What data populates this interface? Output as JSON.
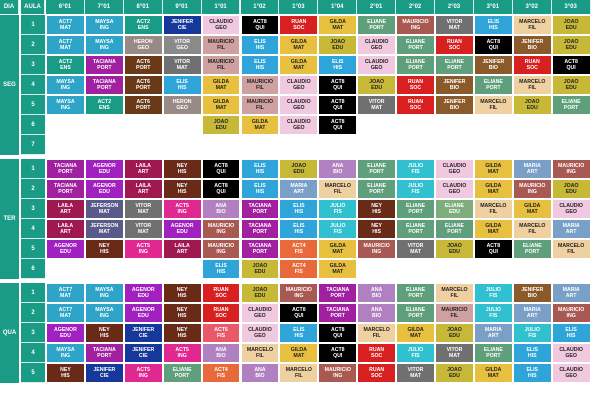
{
  "header": {
    "dia_label": "DIA",
    "aula_label": "AULA"
  },
  "classes": [
    "6°01",
    "7°01",
    "8°01",
    "9°01",
    "1°01",
    "1°02",
    "1°03",
    "1°04",
    "2°01",
    "2°02",
    "2°03",
    "3°01",
    "3°02",
    "3°03"
  ],
  "colors": {
    "ACT7 MAT": {
      "bg": "#2ea4c9",
      "fg": "#ffffff"
    },
    "MAYSA ING": {
      "bg": "#2ea4c9",
      "fg": "#ffffff"
    },
    "ACT2 ENS": {
      "bg": "#1a9b86",
      "fg": "#ffffff"
    },
    "JENIFER CIE": {
      "bg": "#16389a",
      "fg": "#ffffff"
    },
    "CLAUDIO GEO": {
      "bg": "#f0c8e0",
      "fg": "#222222"
    },
    "ACT8 QUI": {
      "bg": "#000000",
      "fg": "#ffffff"
    },
    "RUAN SOC": {
      "bg": "#d82020",
      "fg": "#ffffff"
    },
    "GILDA MAT": {
      "bg": "#e8c040",
      "fg": "#222222"
    },
    "ELIANE PORT": {
      "bg": "#5f9f7c",
      "fg": "#ffffff"
    },
    "MAURICIO ING": {
      "bg": "#a85a52",
      "fg": "#ffffff"
    },
    "VITOR MAT": {
      "bg": "#707070",
      "fg": "#ffffff"
    },
    "ELIS HIS": {
      "bg": "#2ea4d8",
      "fg": "#ffffff"
    },
    "MARCELO FIL": {
      "bg": "#efd0a0",
      "fg": "#222222"
    },
    "JOAO EDU": {
      "bg": "#c8b838",
      "fg": "#222222"
    },
    "HERON GEO": {
      "bg": "#9a8a86",
      "fg": "#ffffff"
    },
    "VITOR GEO": {
      "bg": "#8a8a8a",
      "fg": "#ffffff"
    },
    "MAURICIO FIL": {
      "bg": "#cfa0a0",
      "fg": "#222222"
    },
    "JENIFER BIO": {
      "bg": "#8a5a2a",
      "fg": "#ffffff"
    },
    "TACIANA PORT": {
      "bg": "#a020a0",
      "fg": "#ffffff"
    },
    "ACT6 PORT": {
      "bg": "#6a3a18",
      "fg": "#ffffff"
    },
    "ACT4 FIS": {
      "bg": "#e86a3a",
      "fg": "#ffffff"
    },
    "ELIANE EDU": {
      "bg": "#7fae7c",
      "fg": "#ffffff"
    },
    "AGENOR EDU": {
      "bg": "#a020c0",
      "fg": "#ffffff"
    },
    "LAILA ART": {
      "bg": "#a01850",
      "fg": "#ffffff"
    },
    "NEY HIS": {
      "bg": "#6a2a18",
      "fg": "#ffffff"
    },
    "ANA BIO": {
      "bg": "#b080c0",
      "fg": "#ffffff"
    },
    "JULIO FIS": {
      "bg": "#30c0d0",
      "fg": "#ffffff"
    },
    "MARIA ART": {
      "bg": "#7aa0c8",
      "fg": "#ffffff"
    },
    "JEFERSON MAT": {
      "bg": "#5a5a8a",
      "fg": "#ffffff"
    },
    "ACT5 ING": {
      "bg": "#e02890",
      "fg": "#ffffff"
    },
    "ACT6 FIS": {
      "bg": "#e85a6a",
      "fg": "#ffffff"
    },
    "ELIANE EDU2": {
      "bg": "#7fae7c",
      "fg": "#ffffff"
    }
  },
  "days": [
    {
      "name": "SEG",
      "rows": [
        {
          "aula": "1",
          "cells": [
            "ACT7 MAT",
            "MAYSA ING",
            "ACT2 ENS",
            "JENIFER CIE",
            "CLAUDIO GEO",
            "ACT8 QUI",
            "RUAN SOC",
            "GILDA MAT",
            "ELIANE PORT",
            "MAURICIO ING",
            "VITOR MAT",
            "ELIS HIS",
            "MARCELO FIL",
            "JOAO EDU"
          ]
        },
        {
          "aula": "2",
          "cells": [
            "ACT7 MAT",
            "MAYSA ING",
            "HERON GEO",
            "VITOR GEO",
            "MAURICIO FIL",
            "ELIS HIS",
            "GILDA MAT",
            "JOAO EDU",
            "CLAUDIO GEO",
            "ELIANE PORT",
            "RUAN SOC",
            "ACT8 QUI",
            "JENIFER BIO",
            "JOAO EDU"
          ]
        },
        {
          "aula": "3",
          "cells": [
            "ACT2 ENS",
            "TACIANA PORT",
            "ACT6 PORT",
            "VITOR MAT",
            "MAURICIO FIL",
            "ELIS HIS",
            "GILDA MAT",
            "ELIS HIS",
            "CLAUDIO GEO",
            "ELIANE PORT",
            "ELIANE PORT",
            "JENIFER BIO",
            "RUAN SOC",
            "ACT8 QUI"
          ]
        },
        {
          "aula": "4",
          "cells": [
            "MAYSA ING",
            "TACIANA PORT",
            "ACT6 PORT",
            "ELIS HIS",
            "GILDA MAT",
            "MAURICIO FIL",
            "CLAUDIO GEO",
            "ACT8 QUI",
            "JOAO EDU",
            "RUAN SOC",
            "JENIFER BIO",
            "ELIANE PORT",
            "MARCELO FIL",
            "JOAO EDU"
          ]
        },
        {
          "aula": "5",
          "cells": [
            "MAYSA ING",
            "ACT2 ENS",
            "ACT6 PORT",
            "HERON GEO",
            "GILDA MAT",
            "MAURICIO FIL",
            "CLAUDIO GEO",
            "ACT8 QUI",
            "VITOR MAT",
            "RUAN SOC",
            "JENIFER BIO",
            "MARCELO FIL",
            "JOAO EDU",
            "ELIANE PORT"
          ]
        },
        {
          "aula": "6",
          "cells": [
            "",
            "",
            "",
            "",
            "JOAO EDU",
            "GILDA MAT",
            "CLAUDIO GEO",
            "ACT8 QUI",
            "",
            "",
            "",
            "",
            "",
            ""
          ]
        },
        {
          "aula": "7",
          "cells": [
            "",
            "",
            "",
            "",
            "",
            "",
            "",
            "",
            "",
            "",
            "",
            "",
            "",
            ""
          ]
        }
      ]
    },
    {
      "name": "TER",
      "rows": [
        {
          "aula": "1",
          "cells": [
            "TACIANA PORT",
            "AGENOR EDU",
            "LAILA ART",
            "NEY HIS",
            "ACT8 QUI",
            "ELIS HIS",
            "JOAO EDU",
            "ANA BIO",
            "ELIANE PORT",
            "JULIO FIS",
            "CLAUDIO GEO",
            "GILDA MAT",
            "MARIA ART",
            "MAURICIO ING"
          ]
        },
        {
          "aula": "2",
          "cells": [
            "TACIANA PORT",
            "AGENOR EDU",
            "LAILA ART",
            "NEY HIS",
            "ACT8 QUI",
            "ELIS HIS",
            "MARIA ART",
            "MARCELO FIL",
            "ELIANE PORT",
            "JULIO FIS",
            "CLAUDIO GEO",
            "GILDA MAT",
            "MAURICIO ING",
            "JOAO EDU"
          ]
        },
        {
          "aula": "3",
          "cells": [
            "LAILA ART",
            "JEFERSON MAT",
            "VITOR MAT",
            "ACT5 ING",
            "ANA BIO",
            "TACIANA PORT",
            "ELIS HIS",
            "JULIO FIS",
            "NEY HIS",
            "ELIANE PORT",
            "ELIANE EDU",
            "MARCELO FIL",
            "GILDA MAT",
            "CLAUDIO GEO"
          ]
        },
        {
          "aula": "4",
          "cells": [
            "LAILA ART",
            "JEFERSON MAT",
            "VITOR MAT",
            "AGENOR EDU",
            "MAURICIO ING",
            "TACIANA PORT",
            "ELIS HIS",
            "JULIO FIS",
            "NEY HIS",
            "ELIANE PORT",
            "ELIANE PORT",
            "GILDA MAT",
            "MARCELO FIL",
            "MARIA ART"
          ]
        },
        {
          "aula": "5",
          "cells": [
            "AGENOR EDU",
            "NEY HIS",
            "ACT5 ING",
            "LAILA ART",
            "MAURICIO ING",
            "TACIANA PORT",
            "ACT4 FIS",
            "GILDA MAT",
            "MAURICIO ING",
            "VITOR MAT",
            "JOAO EDU",
            "ACT8 QUI",
            "ELIANE PORT",
            "MARCELO FIL"
          ]
        },
        {
          "aula": "6",
          "cells": [
            "",
            "",
            "",
            "",
            "ELIS HIS",
            "JOAO EDU",
            "ACT4 FIS",
            "GILDA MAT",
            "",
            "",
            "",
            "",
            "",
            ""
          ]
        }
      ]
    },
    {
      "name": "QUA",
      "rows": [
        {
          "aula": "1",
          "cells": [
            "ACT7 MAT",
            "MAYSA ING",
            "AGENOR EDU",
            "NEY HIS",
            "RUAN SOC",
            "JOAO EDU",
            "MAURICIO ING",
            "TACIANA PORT",
            "ANA BIO",
            "ELIANE PORT",
            "MARCELO FIL",
            "JULIO FIS",
            "JENIFER BIO",
            "MARIA ART"
          ]
        },
        {
          "aula": "2",
          "cells": [
            "ACT7 MAT",
            "MAYSA ING",
            "AGENOR EDU",
            "NEY HIS",
            "RUAN SOC",
            "CLAUDIO GEO",
            "ACT8 QUI",
            "TACIANA PORT",
            "ANA BIO",
            "ELIANE PORT",
            "MAURICIO FIL",
            "JULIO FIS",
            "MARIA ART",
            "MAURICIO ING"
          ]
        },
        {
          "aula": "3",
          "cells": [
            "AGENOR EDU",
            "NEY HIS",
            "JENIFER CIE",
            "NEY HIS",
            "ACT6 FIS",
            "CLAUDIO GEO",
            "ELIS HIS",
            "ACT8 QUI",
            "MARCELO FIL",
            "GILDA MAT",
            "JOAO EDU",
            "MARIA ART",
            "JULIO FIS",
            "ELIS HIS"
          ]
        },
        {
          "aula": "4",
          "cells": [
            "MAYSA ING",
            "TACIANA PORT",
            "JENIFER CIE",
            "ACT5 ING",
            "ANA BIO",
            "MARCELO FIL",
            "GILDA MAT",
            "ACT8 QUI",
            "RUAN SOC",
            "JULIO FIS",
            "VITOR MAT",
            "ELIANE PORT",
            "ELIS HIS",
            "CLAUDIO GEO"
          ]
        },
        {
          "aula": "5",
          "cells": [
            "NEY HIS",
            "JENIFER CIE",
            "ACT5 ING",
            "ELIANE PORT",
            "ACT4 FIS",
            "ANA BIO",
            "MARCELO FIL",
            "MAURICIO ING",
            "RUAN SOC",
            "VITOR MAT",
            "JOAO EDU",
            "GILDA MAT",
            "ELIS HIS",
            "CLAUDIO GEO"
          ]
        }
      ]
    }
  ]
}
